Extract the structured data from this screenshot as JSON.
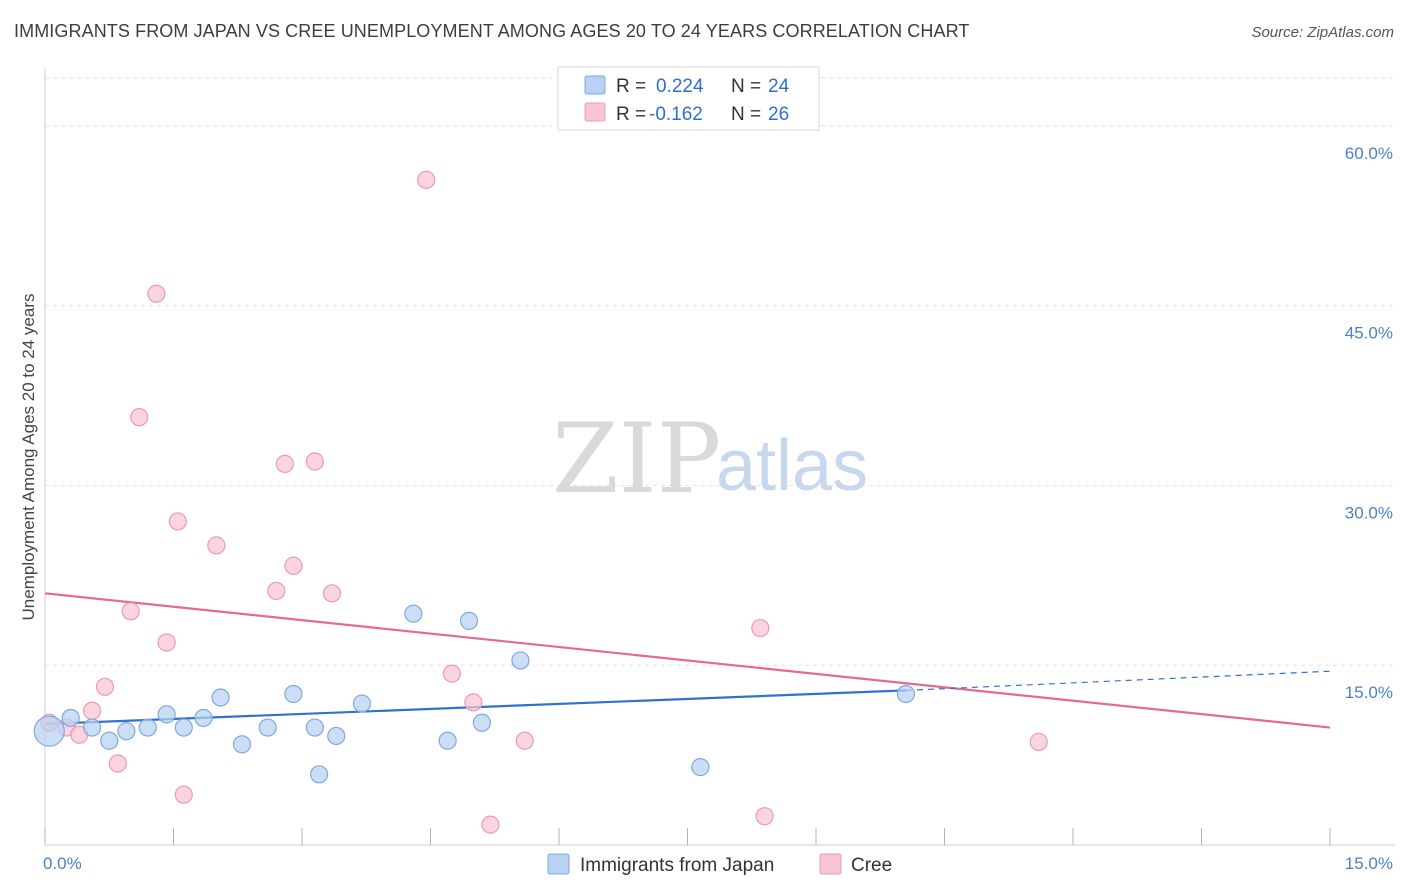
{
  "title": "IMMIGRANTS FROM JAPAN VS CREE UNEMPLOYMENT AMONG AGES 20 TO 24 YEARS CORRELATION CHART",
  "source": "Source: ZipAtlas.com",
  "watermark": {
    "zip": "ZIP",
    "atlas": "atlas"
  },
  "colors": {
    "japan_fill": "#b9d1f2",
    "japan_stroke": "#7fa8e0",
    "japan_line": "#2f72d0",
    "cree_fill": "#f8c5d4",
    "cree_stroke": "#eb9ab3",
    "cree_line": "#e46a92",
    "tick_label": "#4a7fd0",
    "grid": "#e2e2e2"
  },
  "legend": {
    "series": [
      {
        "r_label": "R =",
        "r_value": "0.224",
        "n_label": "N =",
        "n_value": "24"
      },
      {
        "r_label": "R =",
        "r_value": "-0.162",
        "n_label": "N =",
        "n_value": "26"
      }
    ]
  },
  "chart_data": {
    "type": "scatter",
    "title": "IMMIGRANTS FROM JAPAN VS CREE UNEMPLOYMENT AMONG AGES 20 TO 24 YEARS CORRELATION CHART",
    "xlabel": "",
    "ylabel": "Unemployment Among Ages 20 to 24 years",
    "xlim": [
      0,
      15
    ],
    "ylim": [
      0,
      64
    ],
    "x_tick_labels": [
      "0.0%",
      "15.0%"
    ],
    "y_ticks": [
      15,
      30,
      45,
      60
    ],
    "y_tick_labels": [
      "15.0%",
      "30.0%",
      "45.0%",
      "60.0%"
    ],
    "grid": true,
    "series": [
      {
        "name": "Immigrants from Japan",
        "color": "#b9d1f2",
        "points": [
          {
            "x": 0.05,
            "y": 9.5,
            "size": "large"
          },
          {
            "x": 0.3,
            "y": 10.6
          },
          {
            "x": 0.55,
            "y": 9.8
          },
          {
            "x": 0.75,
            "y": 8.7
          },
          {
            "x": 0.95,
            "y": 9.5
          },
          {
            "x": 1.2,
            "y": 9.8
          },
          {
            "x": 1.42,
            "y": 10.9
          },
          {
            "x": 1.62,
            "y": 9.8
          },
          {
            "x": 1.85,
            "y": 10.6
          },
          {
            "x": 2.05,
            "y": 12.3
          },
          {
            "x": 2.3,
            "y": 8.4
          },
          {
            "x": 2.6,
            "y": 9.8
          },
          {
            "x": 2.9,
            "y": 12.6
          },
          {
            "x": 3.15,
            "y": 9.8
          },
          {
            "x": 3.2,
            "y": 5.9
          },
          {
            "x": 3.4,
            "y": 9.1
          },
          {
            "x": 3.7,
            "y": 11.8
          },
          {
            "x": 4.3,
            "y": 19.3
          },
          {
            "x": 4.7,
            "y": 8.7
          },
          {
            "x": 4.95,
            "y": 18.7
          },
          {
            "x": 5.1,
            "y": 10.2
          },
          {
            "x": 5.55,
            "y": 15.4
          },
          {
            "x": 7.65,
            "y": 6.5
          },
          {
            "x": 10.05,
            "y": 12.6
          }
        ],
        "trend": {
          "x0": 0.0,
          "y0": 10.1,
          "x1": 10.05,
          "y1": 12.9,
          "dashed_to": {
            "x": 15.0,
            "y": 14.5
          }
        }
      },
      {
        "name": "Cree",
        "color": "#f8c5d4",
        "points": [
          {
            "x": 0.05,
            "y": 10.2
          },
          {
            "x": 0.25,
            "y": 9.8
          },
          {
            "x": 0.4,
            "y": 9.2
          },
          {
            "x": 0.55,
            "y": 11.2
          },
          {
            "x": 0.7,
            "y": 13.2
          },
          {
            "x": 0.85,
            "y": 6.8
          },
          {
            "x": 1.0,
            "y": 19.5
          },
          {
            "x": 1.1,
            "y": 35.7
          },
          {
            "x": 1.3,
            "y": 46.0
          },
          {
            "x": 1.42,
            "y": 16.9
          },
          {
            "x": 1.55,
            "y": 27.0
          },
          {
            "x": 1.62,
            "y": 4.2
          },
          {
            "x": 2.0,
            "y": 25.0
          },
          {
            "x": 2.7,
            "y": 21.2
          },
          {
            "x": 2.8,
            "y": 31.8
          },
          {
            "x": 2.9,
            "y": 23.3
          },
          {
            "x": 3.15,
            "y": 32.0
          },
          {
            "x": 3.35,
            "y": 21.0
          },
          {
            "x": 4.45,
            "y": 55.5
          },
          {
            "x": 4.75,
            "y": 14.3
          },
          {
            "x": 5.0,
            "y": 11.9
          },
          {
            "x": 5.2,
            "y": 1.7
          },
          {
            "x": 5.6,
            "y": 8.7
          },
          {
            "x": 8.35,
            "y": 18.1
          },
          {
            "x": 8.4,
            "y": 2.4
          },
          {
            "x": 11.6,
            "y": 8.6
          }
        ],
        "trend": {
          "x0": 0.0,
          "y0": 21.0,
          "x1": 15.0,
          "y1": 9.8
        }
      }
    ]
  },
  "bottom_legend": [
    {
      "label": "Immigrants from Japan"
    },
    {
      "label": "Cree"
    }
  ]
}
